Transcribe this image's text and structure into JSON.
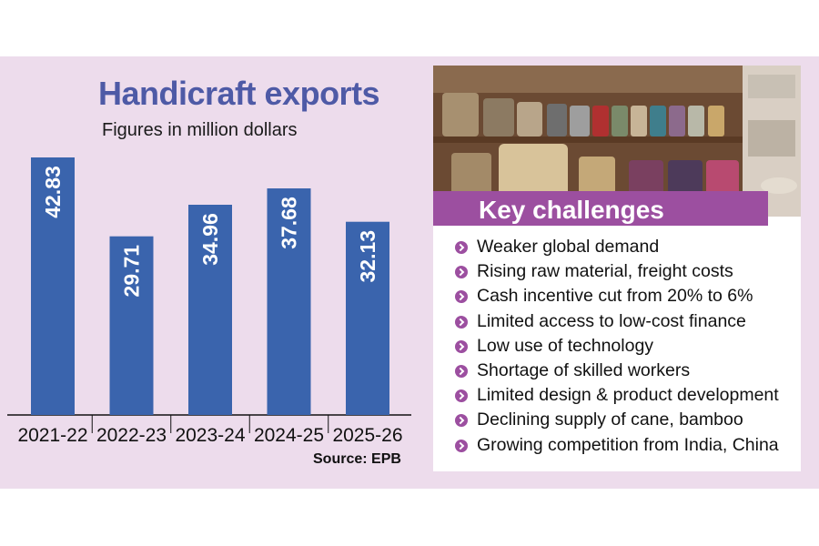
{
  "chart_data": {
    "type": "bar",
    "title": "Handicraft exports",
    "subtitle": "Figures in million dollars",
    "categories": [
      "2021-22",
      "2022-23",
      "2023-24",
      "2024-25",
      "2025-26"
    ],
    "values": [
      42.83,
      29.71,
      34.96,
      37.68,
      32.13
    ],
    "value_labels": [
      "42.83",
      "29.71",
      "34.96",
      "37.68",
      "32.13"
    ],
    "ylim": [
      0,
      42.83
    ],
    "grid": false,
    "bar_color": "#3a64ad",
    "source": "Source: EPB"
  },
  "challenges": {
    "title": "Key challenges",
    "items": [
      "Weaker global demand",
      "Rising raw material, freight costs",
      "Cash incentive cut from 20% to 6%",
      "Limited access to low-cost finance",
      "Low use of technology",
      "Shortage of skilled workers",
      "Limited design & product development",
      "Declining supply of cane, bamboo",
      "Growing competition from India, China"
    ]
  },
  "colors": {
    "panel": "#eddcec",
    "title": "#4e5aa6",
    "accent": "#9c4fa0"
  }
}
